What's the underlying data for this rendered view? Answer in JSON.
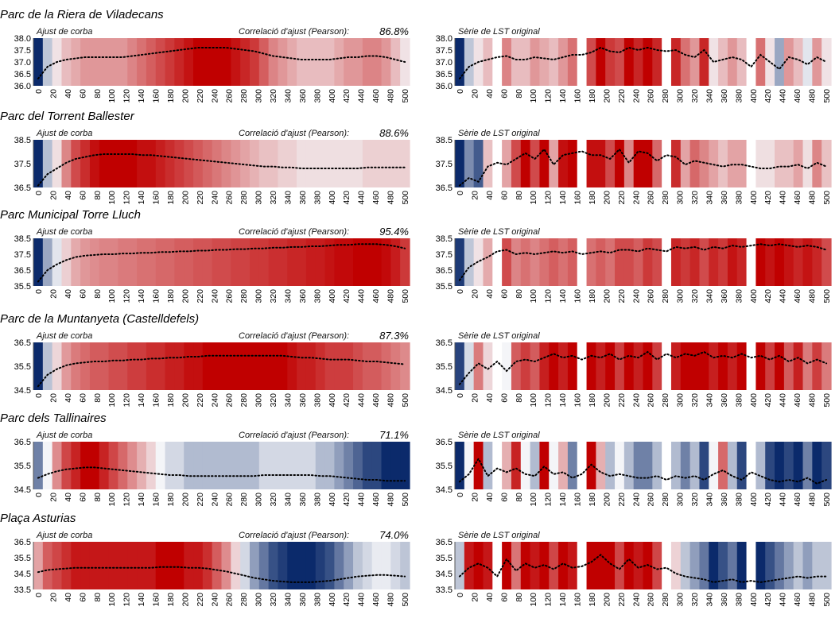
{
  "labels": {
    "fit": "Ajust de corba",
    "corr": "Correlació d'ajust (Pearson):",
    "orig": "Sèrie de LST original"
  },
  "rows": [
    {
      "title": "Parc de la Riera de Viladecans",
      "pearson": "86.8%",
      "yticks": [
        "38.0",
        "37.5",
        "37.0",
        "36.5",
        "36.0"
      ],
      "ylim": [
        36.0,
        38.0
      ],
      "fit_curve": [
        36.3,
        36.8,
        37.0,
        37.1,
        37.15,
        37.2,
        37.2,
        37.2,
        37.2,
        37.2,
        37.25,
        37.3,
        37.35,
        37.4,
        37.45,
        37.5,
        37.55,
        37.6,
        37.6,
        37.6,
        37.6,
        37.55,
        37.5,
        37.45,
        37.35,
        37.25,
        37.2,
        37.15,
        37.1,
        37.1,
        37.1,
        37.1,
        37.15,
        37.2,
        37.2,
        37.25,
        37.25,
        37.2,
        37.1,
        37.0
      ],
      "orig_series": [
        36.3,
        36.8,
        37.0,
        37.1,
        37.2,
        37.25,
        37.1,
        37.1,
        37.2,
        37.15,
        37.1,
        37.2,
        37.3,
        37.3,
        37.4,
        37.6,
        37.45,
        37.4,
        37.6,
        37.5,
        37.6,
        37.5,
        37.45,
        37.5,
        37.3,
        37.2,
        37.5,
        37.0,
        37.1,
        37.2,
        37.1,
        36.8,
        37.3,
        37.0,
        36.7,
        37.2,
        37.1,
        36.9,
        37.2,
        37.0
      ]
    },
    {
      "title": "Parc del Torrent Ballester",
      "pearson": "88.6%",
      "yticks": [
        "38.5",
        "37.5",
        "36.5"
      ],
      "ylim": [
        36.5,
        39.0
      ],
      "fit_curve": [
        36.6,
        37.2,
        37.5,
        37.8,
        38.0,
        38.1,
        38.2,
        38.25,
        38.25,
        38.25,
        38.25,
        38.2,
        38.2,
        38.15,
        38.1,
        38.05,
        38.0,
        37.95,
        37.9,
        37.85,
        37.8,
        37.75,
        37.7,
        37.65,
        37.6,
        37.6,
        37.55,
        37.55,
        37.5,
        37.5,
        37.5,
        37.5,
        37.5,
        37.5,
        37.5,
        37.55,
        37.55,
        37.55,
        37.55,
        37.55
      ],
      "orig_series": [
        36.6,
        37.0,
        36.8,
        37.6,
        37.8,
        37.7,
        38.0,
        38.3,
        38.0,
        38.5,
        37.7,
        38.2,
        38.3,
        38.4,
        38.2,
        38.2,
        38.0,
        38.5,
        37.8,
        38.4,
        38.3,
        37.9,
        38.2,
        38.1,
        37.7,
        37.9,
        37.8,
        37.7,
        37.6,
        37.7,
        37.7,
        37.6,
        37.5,
        37.5,
        37.6,
        37.6,
        37.7,
        37.5,
        37.8,
        37.6
      ]
    },
    {
      "title": "Parc Municipal Torre Lluch",
      "pearson": "95.4%",
      "yticks": [
        "38.5",
        "37.5",
        "36.5",
        "35.5"
      ],
      "ylim": [
        35.5,
        38.8
      ],
      "fit_curve": [
        35.8,
        36.6,
        37.0,
        37.3,
        37.5,
        37.6,
        37.65,
        37.7,
        37.7,
        37.75,
        37.75,
        37.8,
        37.8,
        37.85,
        37.85,
        37.9,
        37.9,
        37.95,
        37.95,
        38.0,
        38.0,
        38.05,
        38.05,
        38.1,
        38.1,
        38.15,
        38.15,
        38.2,
        38.2,
        38.25,
        38.25,
        38.3,
        38.35,
        38.35,
        38.4,
        38.4,
        38.4,
        38.35,
        38.25,
        38.1
      ],
      "orig_series": [
        35.9,
        36.8,
        37.2,
        37.5,
        37.9,
        38.0,
        37.7,
        37.8,
        37.7,
        37.8,
        37.9,
        37.8,
        37.9,
        37.7,
        37.8,
        37.9,
        37.8,
        38.0,
        38.0,
        37.9,
        38.1,
        38.0,
        37.9,
        38.2,
        38.1,
        38.2,
        38.0,
        38.2,
        38.1,
        38.3,
        38.2,
        38.3,
        38.4,
        38.3,
        38.4,
        38.3,
        38.2,
        38.3,
        38.2,
        38.0
      ]
    },
    {
      "title": "Parc de la Muntanyeta (Castelldefels)",
      "pearson": "87.3%",
      "yticks": [
        "36.5",
        "35.5",
        "34.5"
      ],
      "ylim": [
        34.5,
        37.0
      ],
      "fit_curve": [
        34.7,
        35.3,
        35.6,
        35.8,
        35.9,
        35.95,
        36.0,
        36.0,
        36.05,
        36.05,
        36.1,
        36.1,
        36.15,
        36.15,
        36.2,
        36.2,
        36.25,
        36.25,
        36.3,
        36.3,
        36.3,
        36.3,
        36.3,
        36.3,
        36.3,
        36.3,
        36.3,
        36.25,
        36.2,
        36.2,
        36.15,
        36.1,
        36.1,
        36.1,
        36.05,
        36.0,
        36.0,
        35.95,
        35.9,
        35.85
      ],
      "orig_series": [
        34.8,
        35.4,
        35.9,
        35.6,
        36.0,
        35.5,
        36.0,
        36.1,
        36.0,
        36.2,
        36.4,
        36.2,
        36.3,
        36.1,
        36.3,
        36.2,
        36.4,
        36.1,
        36.3,
        36.2,
        36.5,
        36.1,
        36.4,
        36.2,
        36.4,
        36.3,
        36.5,
        36.2,
        36.3,
        36.2,
        36.4,
        36.2,
        36.3,
        36.1,
        36.3,
        36.0,
        36.2,
        35.9,
        36.1,
        35.9
      ]
    },
    {
      "title": "Parc dels   Tallinaires",
      "pearson": "71.1%",
      "yticks": [
        "36.5",
        "35.5",
        "34.5"
      ],
      "ylim": [
        34.5,
        37.0
      ],
      "fit_curve": [
        35.1,
        35.3,
        35.45,
        35.55,
        35.6,
        35.65,
        35.65,
        35.6,
        35.55,
        35.5,
        35.45,
        35.4,
        35.35,
        35.3,
        35.25,
        35.25,
        35.2,
        35.2,
        35.2,
        35.2,
        35.2,
        35.2,
        35.2,
        35.2,
        35.25,
        35.25,
        35.25,
        35.25,
        35.25,
        35.25,
        35.2,
        35.2,
        35.15,
        35.1,
        35.05,
        35.0,
        35.0,
        34.95,
        34.95,
        34.95
      ],
      "orig_series": [
        34.9,
        35.3,
        36.1,
        35.2,
        35.6,
        35.4,
        35.6,
        35.3,
        35.2,
        35.7,
        35.3,
        35.4,
        35.1,
        35.3,
        35.8,
        35.4,
        35.2,
        35.3,
        35.2,
        35.1,
        35.1,
        35.2,
        35.0,
        35.2,
        35.1,
        35.2,
        35.0,
        35.3,
        35.5,
        35.2,
        35.0,
        35.4,
        35.2,
        35.0,
        34.9,
        35.0,
        34.9,
        35.1,
        34.8,
        35.0
      ]
    },
    {
      "title": "Plaça  Asturias",
      "pearson": "74.0%",
      "yticks": [
        "36.5",
        "35.5",
        "34.5",
        "33.5"
      ],
      "ylim": [
        33.5,
        36.8
      ],
      "fit_curve": [
        34.7,
        34.85,
        34.9,
        34.95,
        35.0,
        35.0,
        35.0,
        35.0,
        35.0,
        35.0,
        35.0,
        35.0,
        35.0,
        35.05,
        35.05,
        35.05,
        35.0,
        35.0,
        34.95,
        34.85,
        34.75,
        34.6,
        34.45,
        34.3,
        34.2,
        34.1,
        34.05,
        34.0,
        34.0,
        34.0,
        34.05,
        34.1,
        34.2,
        34.3,
        34.4,
        34.45,
        34.5,
        34.5,
        34.45,
        34.4
      ],
      "orig_series": [
        34.4,
        35.0,
        35.3,
        35.0,
        34.4,
        35.6,
        34.8,
        35.3,
        35.0,
        35.2,
        34.9,
        35.3,
        35.0,
        35.1,
        35.4,
        35.9,
        35.3,
        34.9,
        35.6,
        35.0,
        35.2,
        34.9,
        35.0,
        34.6,
        34.4,
        34.3,
        34.2,
        34.0,
        34.1,
        34.2,
        34.0,
        34.1,
        34.0,
        34.1,
        34.2,
        34.3,
        34.4,
        34.3,
        34.4,
        34.4
      ]
    }
  ],
  "chart_data": [
    {
      "type": "heatmap",
      "title": "Parc de la Riera de Viladecans — Ajust de corba",
      "x": [
        0,
        20,
        40,
        60,
        80,
        100,
        120,
        140,
        160,
        180,
        200,
        220,
        240,
        260,
        280,
        300,
        320,
        340,
        360,
        380,
        400,
        420,
        440,
        460,
        480,
        500
      ],
      "ylim": [
        36.0,
        38.0
      ]
    },
    {
      "type": "heatmap",
      "title": "Parc del Torrent Ballester — Ajust de corba",
      "x": [
        0,
        20,
        40,
        60,
        80,
        100,
        120,
        140,
        160,
        180,
        200,
        220,
        240,
        260,
        280,
        300,
        320,
        340,
        360,
        380,
        400,
        420,
        440,
        460,
        480,
        500
      ],
      "ylim": [
        36.5,
        39.0
      ]
    },
    {
      "type": "heatmap",
      "title": "Parc Municipal Torre Lluch — Ajust de corba",
      "x": [
        0,
        20,
        40,
        60,
        80,
        100,
        120,
        140,
        160,
        180,
        200,
        220,
        240,
        260,
        280,
        300,
        320,
        340,
        360,
        380,
        400,
        420,
        440,
        460,
        480,
        500
      ],
      "ylim": [
        35.5,
        38.8
      ]
    },
    {
      "type": "heatmap",
      "title": "Parc de la Muntanyeta (Castelldefels) — Ajust de corba",
      "x": [
        0,
        20,
        40,
        60,
        80,
        100,
        120,
        140,
        160,
        180,
        200,
        220,
        240,
        260,
        280,
        300,
        320,
        340,
        360,
        380,
        400,
        420,
        440,
        460,
        480,
        500
      ],
      "ylim": [
        34.5,
        37.0
      ]
    },
    {
      "type": "heatmap",
      "title": "Parc dels Tallinaires — Ajust de corba",
      "x": [
        0,
        20,
        40,
        60,
        80,
        100,
        120,
        140,
        160,
        180,
        200,
        220,
        240,
        260,
        280,
        300,
        320,
        340,
        360,
        380,
        400,
        420,
        440,
        460,
        480,
        500
      ],
      "ylim": [
        34.5,
        37.0
      ]
    },
    {
      "type": "heatmap",
      "title": "Plaça Asturias — Ajust de corba",
      "x": [
        0,
        20,
        40,
        60,
        80,
        100,
        120,
        140,
        160,
        180,
        200,
        220,
        240,
        260,
        280,
        300,
        320,
        340,
        360,
        380,
        400,
        420,
        440,
        460,
        480,
        500
      ],
      "ylim": [
        33.5,
        36.8
      ]
    }
  ],
  "xticks": [
    "0",
    "20",
    "40",
    "60",
    "80",
    "100",
    "120",
    "140",
    "160",
    "180",
    "200",
    "220",
    "240",
    "260",
    "280",
    "300",
    "320",
    "340",
    "360",
    "380",
    "400",
    "420",
    "440",
    "460",
    "480",
    "500"
  ],
  "colors": {
    "hot": "#c00000",
    "cold": "#0b2a6b",
    "neutral": "#f4f5f8",
    "curve": "#000000"
  }
}
